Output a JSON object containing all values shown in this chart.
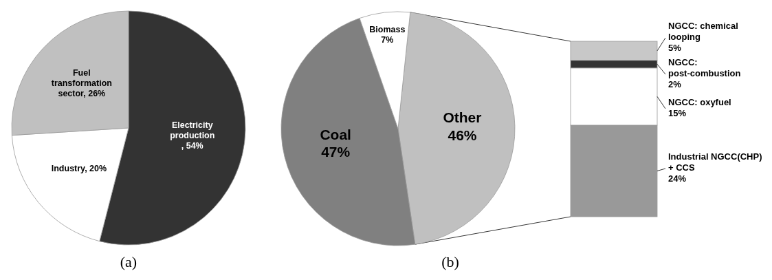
{
  "chart_data": [
    {
      "type": "pie",
      "categories": [
        "Electricity production",
        "Industry",
        "Fuel transformation sector"
      ],
      "values": [
        54,
        20,
        26
      ],
      "value_labels": [
        ", 54%",
        ", 20%",
        ", 26%"
      ],
      "colors": [
        "#333333",
        "#ffffff",
        "#c0c0c0"
      ],
      "legend": false,
      "annotations": [
        "(a)"
      ]
    },
    {
      "type": "pie",
      "categories": [
        "Other",
        "Coal",
        "Biomass"
      ],
      "values": [
        46,
        47,
        7
      ],
      "value_labels": [
        "46%",
        "47%",
        "7%"
      ],
      "colors": [
        "#c0c0c0",
        "#808080",
        "#ffffff"
      ],
      "legend": false,
      "annotations": [
        "(b)"
      ]
    },
    {
      "type": "bar",
      "stacked": true,
      "categories": [
        null
      ],
      "legend": false,
      "series": [
        {
          "name": "Industrial NGCC(CHP) + CCS",
          "color": "#999999",
          "values": [
            24
          ],
          "value_labels": [
            "24%"
          ]
        },
        {
          "name": "NGCC: oxyfuel",
          "color": "#ffffff",
          "values": [
            15
          ],
          "value_labels": [
            "15%"
          ]
        },
        {
          "name": "NGCC: post-combustion",
          "color": "#333333",
          "values": [
            2
          ],
          "value_labels": [
            "2%"
          ]
        },
        {
          "name": "NGCC: chemical looping",
          "color": "#c8c8c8",
          "values": [
            5
          ],
          "value_labels": [
            "5%"
          ]
        }
      ]
    }
  ]
}
